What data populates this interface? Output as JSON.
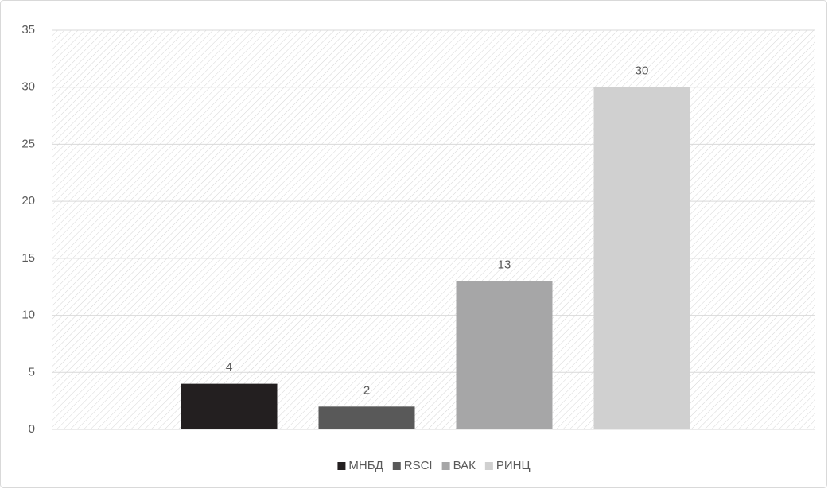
{
  "chart_data": {
    "type": "bar",
    "series": [
      {
        "name": "МНБД",
        "color": "#231f20",
        "values": [
          4
        ]
      },
      {
        "name": "RSCI",
        "color": "#595959",
        "values": [
          2
        ]
      },
      {
        "name": "ВАК",
        "color": "#a6a6a7",
        "values": [
          13
        ]
      },
      {
        "name": "РИНЦ",
        "color": "#d0d0d0",
        "values": [
          30
        ]
      }
    ],
    "ylim": [
      0,
      35
    ],
    "yticks": [
      0,
      5,
      10,
      15,
      20,
      25,
      30,
      35
    ],
    "grid": true,
    "legend": "bottom"
  }
}
